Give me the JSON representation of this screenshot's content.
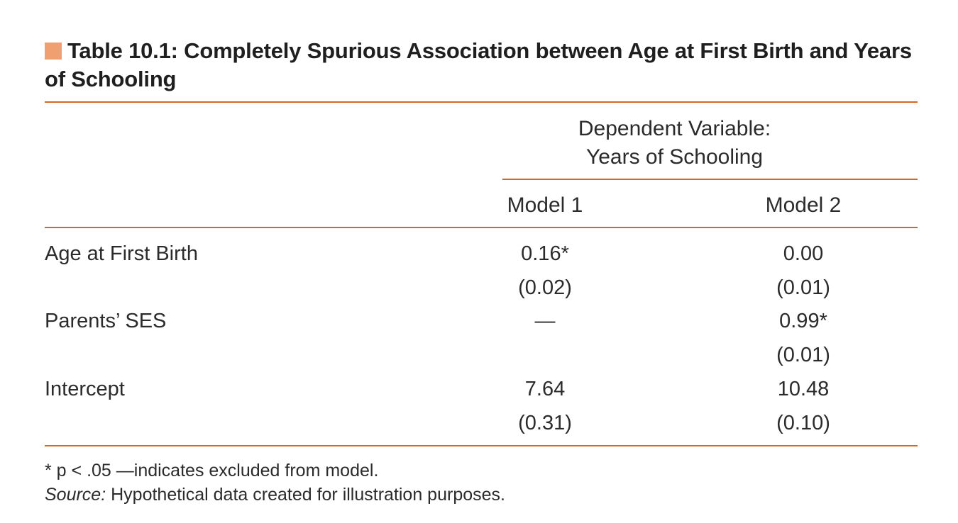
{
  "table": {
    "title": "Table 10.1:  Completely Spurious Association between Age at First Birth and Years of Schooling",
    "accent_color": "#f0a070",
    "rule_color": "#d2691e",
    "dependent_variable": {
      "line1": "Dependent Variable:",
      "line2": "Years of Schooling"
    },
    "columns": [
      "Model 1",
      "Model 2"
    ],
    "rows": [
      {
        "label": "Age at First Birth",
        "model1": "0.16*",
        "model1_se": "(0.02)",
        "model2": "0.00",
        "model2_se": "(0.01)"
      },
      {
        "label": "Parents’ SES",
        "model1": "—",
        "model1_se": "",
        "model2": "0.99*",
        "model2_se": "(0.01)"
      },
      {
        "label": "Intercept",
        "model1": "7.64",
        "model1_se": "(0.31)",
        "model2": "10.48",
        "model2_se": "(0.10)"
      }
    ],
    "footnote": "* p < .05 —indicates excluded from model.",
    "source_label": "Source:",
    "source_text": " Hypothetical data created for illustration purposes."
  }
}
